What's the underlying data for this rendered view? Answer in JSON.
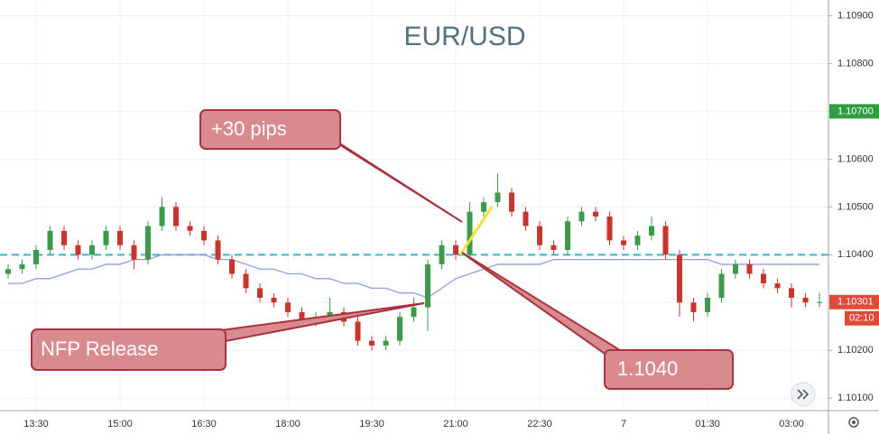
{
  "chart_data": {
    "type": "candlestick",
    "title": "EUR/USD",
    "categories": [
      null,
      null,
      "13:30",
      null,
      null,
      null,
      null,
      null,
      "15:00",
      null,
      null,
      null,
      null,
      null,
      "16:30",
      null,
      null,
      null,
      null,
      null,
      "18:00",
      null,
      null,
      null,
      null,
      null,
      "19:30",
      null,
      null,
      null,
      null,
      null,
      "21:00",
      null,
      null,
      null,
      null,
      null,
      "22:30",
      null,
      null,
      null,
      null,
      null,
      "7",
      null,
      null,
      null,
      null,
      null,
      "01:30",
      null,
      null,
      null,
      null,
      null,
      "03:00",
      null,
      null
    ],
    "open": [
      1.1036,
      1.1037,
      1.1038,
      1.1041,
      1.1045,
      1.1042,
      1.104,
      1.1042,
      1.1045,
      1.1042,
      1.1039,
      1.1046,
      1.105,
      1.1046,
      1.1045,
      1.1043,
      1.1039,
      1.1036,
      1.1033,
      1.1031,
      1.103,
      1.1028,
      1.1026,
      1.1027,
      1.1028,
      1.1026,
      1.1022,
      1.1021,
      1.1022,
      1.1027,
      1.1029,
      1.1038,
      1.1042,
      1.104,
      1.1049,
      1.1051,
      1.1053,
      1.1049,
      1.1046,
      1.1042,
      1.1041,
      1.1047,
      1.1049,
      1.1048,
      1.1043,
      1.1042,
      1.1044,
      1.1046,
      1.104,
      1.103,
      1.1028,
      1.1031,
      1.1036,
      1.1038,
      1.1036,
      1.1034,
      1.1033,
      1.1031,
      1.103
    ],
    "high": [
      1.1038,
      1.1039,
      1.1042,
      1.1046,
      1.1046,
      1.1043,
      1.1043,
      1.1046,
      1.1046,
      1.1043,
      1.1047,
      1.1052,
      1.1051,
      1.1047,
      1.1046,
      1.1044,
      1.104,
      1.1037,
      1.1034,
      1.1032,
      1.1031,
      1.1029,
      1.1028,
      1.1031,
      1.1029,
      1.1027,
      1.1023,
      1.1023,
      1.1028,
      1.1031,
      1.1039,
      1.1043,
      1.1043,
      1.1051,
      1.1052,
      1.1057,
      1.1054,
      1.105,
      1.1047,
      1.1043,
      1.1048,
      1.105,
      1.105,
      1.1049,
      1.1044,
      1.1045,
      1.1048,
      1.1047,
      1.1041,
      1.1031,
      1.1032,
      1.1037,
      1.1039,
      1.1039,
      1.1037,
      1.1035,
      1.1034,
      1.1032,
      1.1032
    ],
    "low": [
      1.1035,
      1.1036,
      1.1037,
      1.104,
      1.1041,
      1.1039,
      1.1039,
      1.1041,
      1.1041,
      1.1037,
      1.1038,
      1.1045,
      1.1045,
      1.1044,
      1.1042,
      1.1038,
      1.1035,
      1.1032,
      1.103,
      1.1029,
      1.1027,
      1.1025,
      1.1025,
      1.1026,
      1.1025,
      1.1021,
      1.102,
      1.102,
      1.1021,
      1.1026,
      1.1024,
      1.1037,
      1.1039,
      1.1039,
      1.1048,
      1.105,
      1.1048,
      1.1045,
      1.1041,
      1.104,
      1.104,
      1.1046,
      1.1047,
      1.1042,
      1.1041,
      1.1041,
      1.1043,
      1.1039,
      1.1027,
      1.1026,
      1.1027,
      1.103,
      1.1035,
      1.1035,
      1.1033,
      1.1032,
      1.1029,
      1.1029,
      1.1029
    ],
    "close": [
      1.1037,
      1.1038,
      1.1041,
      1.1045,
      1.1042,
      1.104,
      1.1042,
      1.1045,
      1.1042,
      1.1039,
      1.1046,
      1.105,
      1.1046,
      1.1045,
      1.1043,
      1.1039,
      1.1036,
      1.1033,
      1.1031,
      1.103,
      1.1028,
      1.1026,
      1.1027,
      1.1028,
      1.1026,
      1.1022,
      1.1021,
      1.1022,
      1.1027,
      1.1029,
      1.1038,
      1.1042,
      1.104,
      1.1049,
      1.1051,
      1.1053,
      1.1049,
      1.1046,
      1.1042,
      1.1041,
      1.1047,
      1.1049,
      1.1048,
      1.1043,
      1.1042,
      1.1044,
      1.1046,
      1.104,
      1.103,
      1.1028,
      1.1031,
      1.1036,
      1.1038,
      1.1036,
      1.1034,
      1.1033,
      1.1031,
      1.103,
      1.10301
    ],
    "up_color": "#3d9a4a",
    "down_color": "#c6362c",
    "ma": {
      "color": "#8da0d8",
      "values": [
        1.1034,
        1.1034,
        1.1035,
        1.1035,
        1.1036,
        1.1037,
        1.1037,
        1.1038,
        1.1038,
        1.1039,
        1.1039,
        1.104,
        1.104,
        1.104,
        1.104,
        1.1039,
        1.1039,
        1.1038,
        1.1037,
        1.1037,
        1.1036,
        1.1036,
        1.1035,
        1.1035,
        1.1034,
        1.1034,
        1.1033,
        1.1033,
        1.1032,
        1.1032,
        1.1031,
        1.1033,
        1.1035,
        1.1036,
        1.1037,
        1.1038,
        1.1038,
        1.1038,
        1.1038,
        1.1039,
        1.1039,
        1.1039,
        1.1039,
        1.1039,
        1.1039,
        1.1039,
        1.1039,
        1.1039,
        1.1039,
        1.1039,
        1.1039,
        1.1038,
        1.1038,
        1.1038,
        1.1038,
        1.1038,
        1.1038,
        1.1038,
        1.1038
      ]
    },
    "hline": {
      "value": 1.104,
      "color": "#36b6c6"
    },
    "move": {
      "values": [
        1.104,
        1.105
      ],
      "color": "#f2e23a"
    },
    "ylim": [
      1.10074,
      1.10933
    ],
    "yticks": [
      {
        "value": 1.101,
        "label": "1.10100"
      },
      {
        "value": 1.102,
        "label": "1.10200"
      },
      {
        "value": 1.103,
        "label": "1.10300"
      },
      {
        "value": 1.104,
        "label": "1.10400"
      },
      {
        "value": 1.105,
        "label": "1.10500"
      },
      {
        "value": 1.106,
        "label": "1.10600"
      },
      {
        "value": 1.107,
        "label": "1.10700"
      },
      {
        "value": 1.108,
        "label": "1.10800"
      },
      {
        "value": 1.109,
        "label": "1.10900"
      }
    ],
    "grid": true,
    "price_tags": [
      {
        "value": 1.107,
        "label": "1.10700",
        "color": "#2e9e3f"
      },
      {
        "value": 1.10301,
        "label": "1.10301",
        "color": "#e04a3a"
      }
    ],
    "countdown": "02:10",
    "annotations": [
      {
        "text": "+30 pips"
      },
      {
        "text": "NFP Release"
      },
      {
        "text": "1.1040"
      }
    ]
  }
}
